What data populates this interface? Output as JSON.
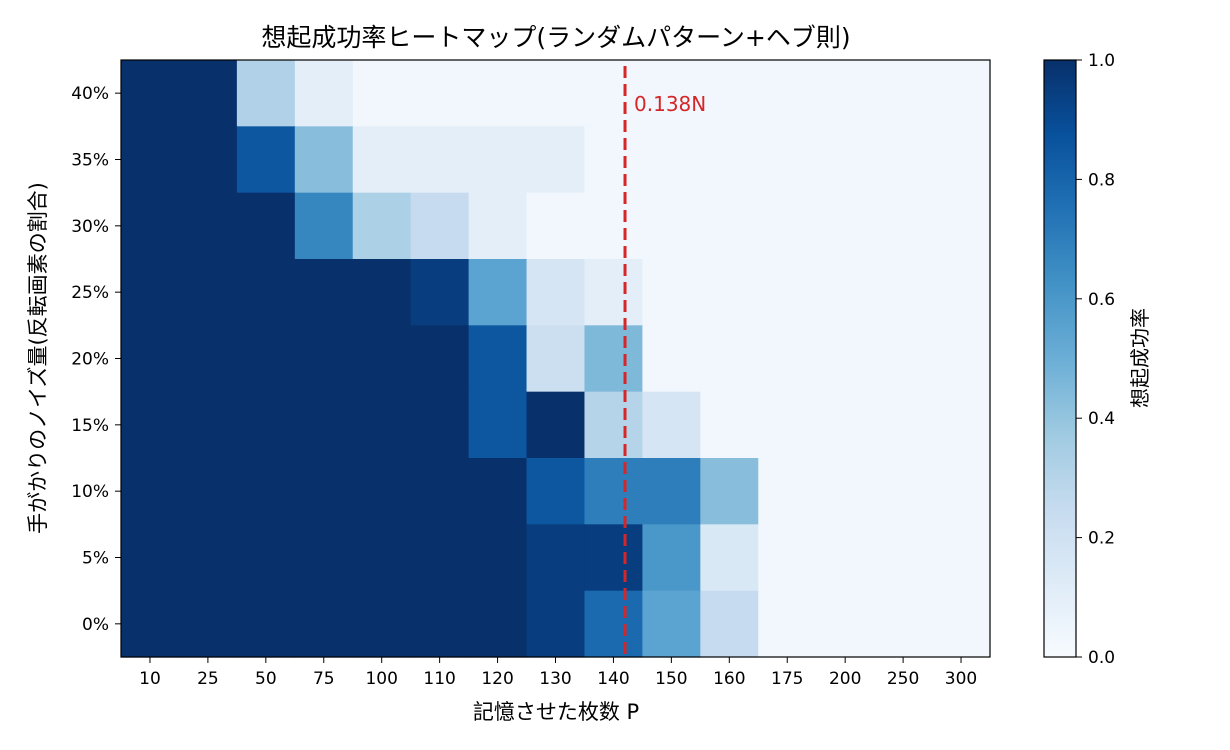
{
  "chart_data": {
    "type": "heatmap",
    "title": "想起成功率ヒートマップ(ランダムパターン+ヘブ則)",
    "xlabel": "記憶させた枚数 P",
    "ylabel": "手がかりのノイズ量(反転画素の割合)",
    "x_categories": [
      "10",
      "25",
      "50",
      "75",
      "100",
      "110",
      "120",
      "130",
      "140",
      "150",
      "160",
      "175",
      "200",
      "250",
      "300"
    ],
    "y_categories": [
      "40%",
      "35%",
      "30%",
      "25%",
      "20%",
      "15%",
      "10%",
      "5%",
      "0%"
    ],
    "values": [
      [
        1.0,
        1.0,
        0.32,
        0.1,
        0.03,
        0.03,
        0.03,
        0.03,
        0.03,
        0.03,
        0.03,
        0.03,
        0.03,
        0.03,
        0.03
      ],
      [
        1.0,
        1.0,
        0.85,
        0.43,
        0.1,
        0.1,
        0.1,
        0.1,
        0.03,
        0.03,
        0.03,
        0.03,
        0.03,
        0.03,
        0.03
      ],
      [
        1.0,
        1.0,
        1.0,
        0.67,
        0.33,
        0.25,
        0.1,
        0.03,
        0.03,
        0.03,
        0.03,
        0.03,
        0.03,
        0.03,
        0.03
      ],
      [
        1.0,
        1.0,
        1.0,
        1.0,
        1.0,
        0.95,
        0.55,
        0.17,
        0.1,
        0.03,
        0.03,
        0.03,
        0.03,
        0.03,
        0.03
      ],
      [
        1.0,
        1.0,
        1.0,
        1.0,
        1.0,
        1.0,
        0.85,
        0.22,
        0.45,
        0.03,
        0.03,
        0.03,
        0.03,
        0.03,
        0.03
      ],
      [
        1.0,
        1.0,
        1.0,
        1.0,
        1.0,
        1.0,
        0.85,
        1.0,
        0.3,
        0.17,
        0.03,
        0.03,
        0.03,
        0.03,
        0.03
      ],
      [
        1.0,
        1.0,
        1.0,
        1.0,
        1.0,
        1.0,
        1.0,
        0.85,
        0.7,
        0.7,
        0.43,
        0.03,
        0.03,
        0.03,
        0.03
      ],
      [
        1.0,
        1.0,
        1.0,
        1.0,
        1.0,
        1.0,
        1.0,
        0.95,
        0.95,
        0.6,
        0.15,
        0.03,
        0.03,
        0.03,
        0.03
      ],
      [
        1.0,
        1.0,
        1.0,
        1.0,
        1.0,
        1.0,
        1.0,
        0.95,
        0.78,
        0.55,
        0.25,
        0.03,
        0.03,
        0.03,
        0.03
      ]
    ],
    "vline": {
      "x_position": 142,
      "label": "0.138N",
      "color": "#d62728",
      "style": "dashed"
    },
    "colorbar": {
      "label": "想起成功率",
      "range": [
        0.0,
        1.0
      ],
      "ticks": [
        "0.0",
        "0.2",
        "0.4",
        "0.6",
        "0.8",
        "1.0"
      ],
      "colormap": "Blues"
    },
    "grid": false
  }
}
